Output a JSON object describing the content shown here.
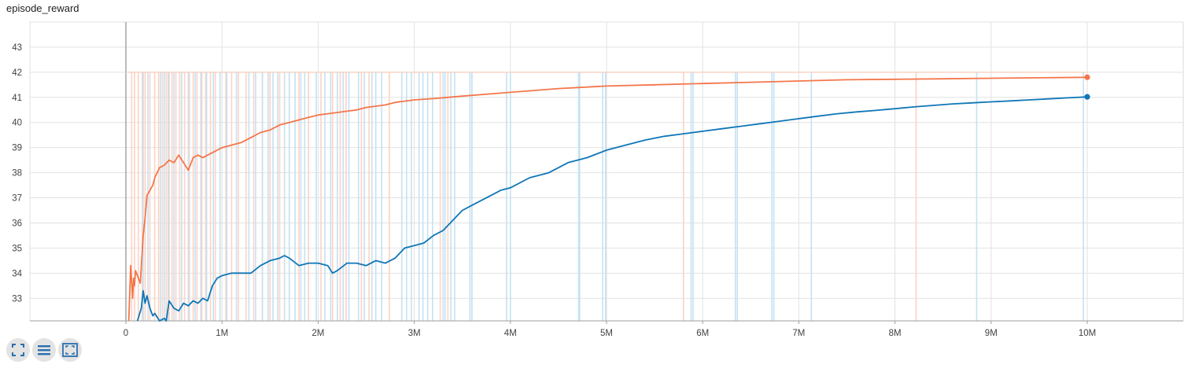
{
  "chart_data": {
    "type": "line",
    "title": "episode_reward",
    "xlabel": "",
    "ylabel": "",
    "xlim": [
      0,
      11000000
    ],
    "ylim": [
      32.1,
      44.0
    ],
    "grid": true,
    "x_ticks": [
      0,
      1000000,
      2000000,
      3000000,
      4000000,
      5000000,
      6000000,
      7000000,
      8000000,
      9000000,
      10000000
    ],
    "x_tick_labels": [
      "0",
      "1M",
      "2M",
      "3M",
      "4M",
      "5M",
      "6M",
      "7M",
      "8M",
      "9M",
      "10M"
    ],
    "y_ticks": [
      33,
      34,
      35,
      36,
      37,
      38,
      39,
      40,
      41,
      42,
      43
    ],
    "y_tick_labels": [
      "33",
      "34",
      "35",
      "36",
      "37",
      "38",
      "39",
      "40",
      "41",
      "42",
      "43"
    ],
    "series": [
      {
        "color": "#f4764a",
        "raw_color": "#fbd3c5",
        "x": [
          30000,
          50000,
          70000,
          80000,
          90000,
          100000,
          120000,
          150000,
          180000,
          200000,
          220000,
          250000,
          280000,
          300000,
          350000,
          400000,
          450000,
          500000,
          550000,
          600000,
          650000,
          700000,
          750000,
          800000,
          850000,
          900000,
          950000,
          1000000,
          1100000,
          1200000,
          1300000,
          1400000,
          1500000,
          1600000,
          1700000,
          1800000,
          1900000,
          2000000,
          2100000,
          2200000,
          2300000,
          2400000,
          2500000,
          2600000,
          2700000,
          2800000,
          2900000,
          3000000,
          3200000,
          3500000,
          4000000,
          4500000,
          5000000,
          5500000,
          6000000,
          6500000,
          7000000,
          7500000,
          8000000,
          8500000,
          9000000,
          9500000,
          10000000
        ],
        "y": [
          32.1,
          34.3,
          33.0,
          33.8,
          33.5,
          34.1,
          33.9,
          33.6,
          35.5,
          36.2,
          37.1,
          37.3,
          37.5,
          37.8,
          38.2,
          38.3,
          38.5,
          38.4,
          38.7,
          38.4,
          38.1,
          38.6,
          38.7,
          38.6,
          38.7,
          38.8,
          38.9,
          39.0,
          39.1,
          39.2,
          39.4,
          39.6,
          39.7,
          39.9,
          40.0,
          40.1,
          40.2,
          40.3,
          40.35,
          40.4,
          40.45,
          40.5,
          40.6,
          40.65,
          40.7,
          40.8,
          40.85,
          40.9,
          40.95,
          41.05,
          41.2,
          41.35,
          41.45,
          41.5,
          41.55,
          41.6,
          41.65,
          41.7,
          41.72,
          41.74,
          41.76,
          41.78,
          41.8
        ]
      },
      {
        "color": "#0f76b7",
        "raw_color": "#c6e1f1",
        "x": [
          120000,
          160000,
          180000,
          200000,
          220000,
          250000,
          280000,
          300000,
          350000,
          400000,
          420000,
          450000,
          500000,
          550000,
          600000,
          650000,
          700000,
          750000,
          800000,
          850000,
          900000,
          950000,
          1000000,
          1100000,
          1200000,
          1300000,
          1400000,
          1500000,
          1600000,
          1650000,
          1700000,
          1800000,
          1900000,
          2000000,
          2100000,
          2150000,
          2200000,
          2300000,
          2400000,
          2500000,
          2600000,
          2700000,
          2800000,
          2900000,
          3000000,
          3100000,
          3200000,
          3300000,
          3400000,
          3500000,
          3600000,
          3700000,
          3800000,
          3900000,
          4000000,
          4200000,
          4400000,
          4600000,
          4800000,
          5000000,
          5200000,
          5400000,
          5600000,
          5800000,
          6000000,
          6200000,
          6400000,
          6600000,
          6800000,
          7000000,
          7200000,
          7400000,
          7600000,
          7800000,
          8000000,
          8200000,
          8400000,
          8600000,
          8800000,
          9000000,
          9200000,
          9400000,
          9600000,
          9800000,
          10000000
        ],
        "y": [
          32.1,
          32.6,
          33.3,
          32.8,
          33.1,
          32.6,
          32.3,
          32.4,
          32.1,
          32.2,
          32.1,
          32.9,
          32.6,
          32.5,
          32.8,
          32.7,
          32.9,
          32.8,
          33.0,
          32.9,
          33.5,
          33.8,
          33.9,
          34.0,
          34.0,
          34.0,
          34.3,
          34.5,
          34.6,
          34.7,
          34.6,
          34.3,
          34.4,
          34.4,
          34.3,
          34.0,
          34.1,
          34.4,
          34.4,
          34.3,
          34.5,
          34.4,
          34.6,
          35.0,
          35.1,
          35.2,
          35.5,
          35.7,
          36.1,
          36.5,
          36.7,
          36.9,
          37.1,
          37.3,
          37.4,
          37.8,
          38.0,
          38.4,
          38.6,
          38.9,
          39.1,
          39.3,
          39.45,
          39.55,
          39.65,
          39.75,
          39.85,
          39.95,
          40.05,
          40.15,
          40.25,
          40.35,
          40.42,
          40.48,
          40.55,
          40.62,
          40.68,
          40.74,
          40.78,
          40.82,
          40.86,
          40.9,
          40.94,
          40.98,
          41.02
        ]
      }
    ]
  },
  "raw_spikes": {
    "orange_x": [
      60000,
      90000,
      130000,
      170000,
      200000,
      250000,
      300000,
      340000,
      380000,
      420000,
      450000,
      480000,
      520000,
      560000,
      610000,
      660000,
      700000,
      740000,
      790000,
      830000,
      880000,
      930000,
      980000,
      1040000,
      1100000,
      1170000,
      1250000,
      1330000,
      1420000,
      1500000,
      1600000,
      1700000,
      1800000,
      1900000,
      2030000,
      2150000,
      2230000,
      2290000,
      2450000,
      2530000,
      2740000,
      3270000,
      3350000,
      5800000,
      8220000
    ],
    "blue_x": [
      180000,
      230000,
      360000,
      400000,
      440000,
      500000,
      580000,
      650000,
      720000,
      780000,
      840000,
      910000,
      980000,
      1050000,
      1150000,
      1280000,
      1350000,
      1420000,
      1480000,
      1530000,
      1580000,
      1650000,
      1700000,
      1760000,
      1820000,
      1860000,
      1980000,
      2070000,
      2130000,
      2200000,
      2260000,
      2320000,
      2420000,
      2480000,
      2560000,
      2600000,
      2660000,
      2870000,
      2920000,
      2970000,
      3050000,
      3090000,
      3140000,
      3190000,
      3300000,
      3320000,
      3380000,
      3420000,
      3580000,
      3600000,
      3960000,
      4000000,
      4710000,
      4720000,
      4960000,
      4990000,
      5880000,
      5900000,
      6340000,
      6360000,
      6720000,
      6740000,
      7130000,
      8850000,
      9960000
    ]
  },
  "toolbar": [
    {
      "icon": "fit-to-screen-icon"
    },
    {
      "icon": "toggle-log-list-icon"
    },
    {
      "icon": "reset-zoom-icon"
    }
  ]
}
